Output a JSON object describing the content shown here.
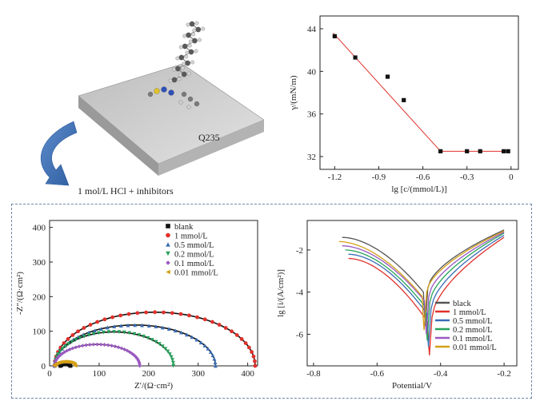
{
  "schematic": {
    "substrate_label": "Q235",
    "solution_label": "1 mol/L HCl + inhibitors",
    "colors": {
      "arrow": "#3f6fb1",
      "plate_top": "#c9c9c9",
      "plate_side": "#9a9a9a"
    },
    "icons": [
      "curved-arrow-icon",
      "molecule-icon",
      "steel-plate-icon"
    ]
  },
  "chart_data": [
    {
      "id": "surface-tension",
      "type": "scatter",
      "title": "",
      "xlabel": "lg [c/(mmol/L)]",
      "ylabel": "γ/(mN/m)",
      "xlim": [
        -1.3,
        0.05
      ],
      "ylim": [
        30.8,
        45.2
      ],
      "xticks": [
        -1.2,
        -0.9,
        -0.6,
        -0.3,
        0
      ],
      "xtick_labels": [
        "-1.2",
        "-0.9",
        "-0.6",
        "-0.3",
        "0"
      ],
      "yticks": [
        32,
        36,
        40,
        44
      ],
      "ytick_labels": [
        "32",
        "36",
        "40",
        "44"
      ],
      "points": [
        {
          "x": -1.2,
          "y": 43.3
        },
        {
          "x": -1.06,
          "y": 41.3
        },
        {
          "x": -0.84,
          "y": 39.5
        },
        {
          "x": -0.73,
          "y": 37.3
        },
        {
          "x": -0.48,
          "y": 32.5
        },
        {
          "x": -0.3,
          "y": 32.5
        },
        {
          "x": -0.21,
          "y": 32.5
        },
        {
          "x": -0.05,
          "y": 32.5
        },
        {
          "x": -0.02,
          "y": 32.5
        }
      ],
      "fit_lines": [
        {
          "x": [
            -1.21,
            -0.48
          ],
          "y": [
            43.6,
            32.5
          ]
        },
        {
          "x": [
            -0.48,
            -0.01
          ],
          "y": [
            32.5,
            32.5
          ]
        }
      ],
      "colors": {
        "points": "#111111",
        "fit": "#e0312b"
      }
    },
    {
      "id": "nyquist",
      "type": "scatter",
      "title": "",
      "xlabel": "Z′/(Ω·cm²)",
      "ylabel": "-Z″/(Ω·cm²)",
      "xlim": [
        0,
        420
      ],
      "ylim": [
        0,
        420
      ],
      "xticks": [
        0,
        100,
        200,
        300,
        400
      ],
      "xtick_labels": [
        "0",
        "100",
        "200",
        "300",
        "400"
      ],
      "yticks": [
        0,
        100,
        200,
        300,
        400
      ],
      "ytick_labels": [
        "0",
        "100",
        "200",
        "300",
        "400"
      ],
      "legend_position": "top-right",
      "series": [
        {
          "name": "blank",
          "marker": "square",
          "color": "#111111",
          "z_start": 22,
          "z_end": 42,
          "height": 5
        },
        {
          "name": "1 mmol/L",
          "marker": "circle",
          "color": "#e0312b",
          "z_start": 10,
          "z_end": 415,
          "height": 155
        },
        {
          "name": "0.5 mmol/L",
          "marker": "triangle-up",
          "color": "#3a6db5",
          "z_start": 10,
          "z_end": 335,
          "height": 118
        },
        {
          "name": "0.2 mmol/L",
          "marker": "triangle-down",
          "color": "#27a35a",
          "z_start": 10,
          "z_end": 250,
          "height": 98
        },
        {
          "name": "0.1 mmol/L",
          "marker": "diamond",
          "color": "#9b59c1",
          "z_start": 10,
          "z_end": 182,
          "height": 62
        },
        {
          "name": "0.01 mmol/L",
          "marker": "triangle-left",
          "color": "#d4a017",
          "z_start": 10,
          "z_end": 52,
          "height": 12
        }
      ]
    },
    {
      "id": "polarization",
      "type": "line",
      "title": "",
      "xlabel": "Potential/V",
      "ylabel": "lg [i/(A/cm²)]",
      "xlim": [
        -0.82,
        -0.16
      ],
      "ylim": [
        -7.5,
        -0.6
      ],
      "xticks": [
        -0.8,
        -0.6,
        -0.4,
        -0.2
      ],
      "xtick_labels": [
        "-0.8",
        "-0.6",
        "-0.4",
        "-0.2"
      ],
      "yticks": [
        -6,
        -4,
        -2
      ],
      "ytick_labels": [
        "-6",
        "-4",
        "-2"
      ],
      "legend_position": "bottom-right",
      "series": [
        {
          "name": "black",
          "color": "#555555",
          "ecorr": -0.448,
          "min_y": -5.6,
          "start": [
            -0.71,
            -1.4
          ],
          "end": [
            -0.2,
            -1.05
          ]
        },
        {
          "name": "1 mmol/L",
          "color": "#e0312b",
          "ecorr": -0.435,
          "min_y": -7.0,
          "start": [
            -0.69,
            -2.4
          ],
          "end": [
            -0.2,
            -1.4
          ]
        },
        {
          "name": "0.5 mmol/L",
          "color": "#3a6db5",
          "ecorr": -0.438,
          "min_y": -6.6,
          "start": [
            -0.69,
            -2.2
          ],
          "end": [
            -0.2,
            -1.3
          ]
        },
        {
          "name": "0.2 mmol/L",
          "color": "#27a35a",
          "ecorr": -0.442,
          "min_y": -6.3,
          "start": [
            -0.7,
            -2.0
          ],
          "end": [
            -0.2,
            -1.2
          ]
        },
        {
          "name": "0.1 mmol/L",
          "color": "#9b59c1",
          "ecorr": -0.445,
          "min_y": -6.0,
          "start": [
            -0.71,
            -1.8
          ],
          "end": [
            -0.2,
            -1.15
          ]
        },
        {
          "name": "0.01 mmol/L",
          "color": "#d4a017",
          "ecorr": -0.452,
          "min_y": -5.8,
          "start": [
            -0.72,
            -1.6
          ],
          "end": [
            -0.2,
            -1.1
          ]
        }
      ]
    }
  ]
}
